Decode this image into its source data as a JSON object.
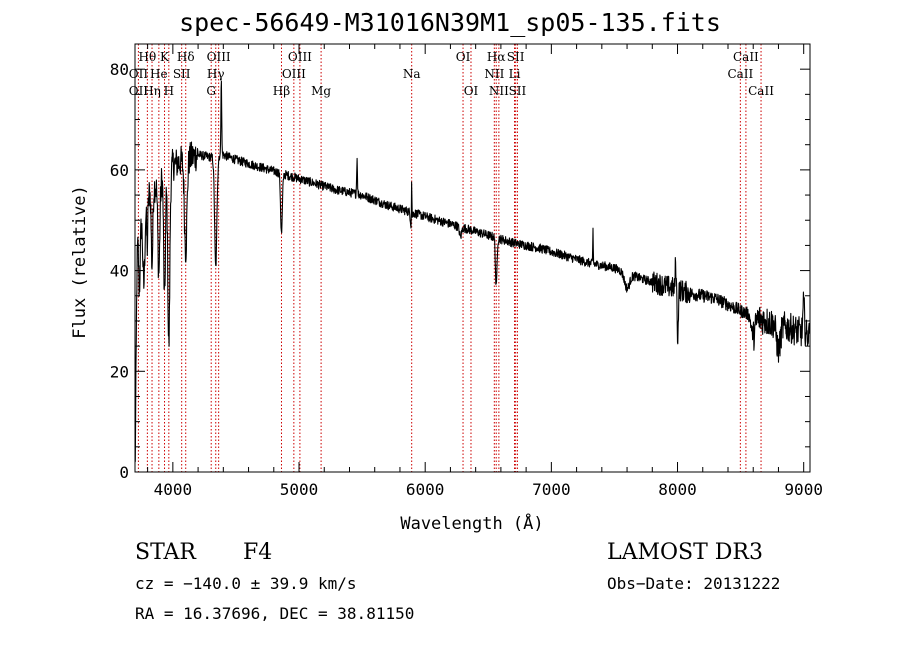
{
  "chart_data": {
    "type": "line",
    "title": "spec-56649-M31016N39M1_sp05-135.fits",
    "xlabel": "Wavelength (Å)",
    "ylabel": "Flux (relative)",
    "xlim": [
      3700,
      9050
    ],
    "ylim": [
      0,
      85
    ],
    "xticks": [
      4000,
      5000,
      6000,
      7000,
      8000,
      9000
    ],
    "yticks": [
      0,
      20,
      40,
      60,
      80
    ],
    "xtick_labels": [
      "4000",
      "5000",
      "6000",
      "7000",
      "8000",
      "9000"
    ],
    "ytick_labels": [
      "0",
      "20",
      "40",
      "60",
      "80"
    ],
    "continuum": [
      [
        3700,
        44
      ],
      [
        3750,
        50
      ],
      [
        3800,
        55
      ],
      [
        3900,
        58
      ],
      [
        4000,
        61
      ],
      [
        4100,
        62
      ],
      [
        4200,
        63
      ],
      [
        4300,
        62.5
      ],
      [
        4400,
        63
      ],
      [
        4500,
        62
      ],
      [
        4700,
        60.5
      ],
      [
        4900,
        59
      ],
      [
        5100,
        57.5
      ],
      [
        5300,
        56
      ],
      [
        5500,
        55
      ],
      [
        5700,
        53
      ],
      [
        5900,
        51.5
      ],
      [
        6100,
        50
      ],
      [
        6300,
        48.5
      ],
      [
        6500,
        47
      ],
      [
        6700,
        45.5
      ],
      [
        6900,
        44.5
      ],
      [
        7100,
        43
      ],
      [
        7300,
        41.5
      ],
      [
        7500,
        40.5
      ],
      [
        7700,
        38.5
      ],
      [
        7900,
        37
      ],
      [
        8100,
        35.5
      ],
      [
        8300,
        34.5
      ],
      [
        8500,
        32
      ],
      [
        8700,
        30
      ],
      [
        8900,
        28.5
      ],
      [
        9050,
        27
      ]
    ],
    "features": [
      [
        3700,
        -43,
        8
      ],
      [
        3735,
        -12,
        6
      ],
      [
        3770,
        -15,
        8
      ],
      [
        3797,
        -10,
        5
      ],
      [
        3835,
        -15,
        6
      ],
      [
        3889,
        -18,
        8
      ],
      [
        3934,
        -25,
        7
      ],
      [
        3968,
        -35,
        8
      ],
      [
        4102,
        -18,
        10
      ],
      [
        4340,
        -22,
        9
      ],
      [
        4384,
        16,
        3
      ],
      [
        4861,
        -12,
        7
      ],
      [
        5460,
        7,
        3
      ],
      [
        5890,
        -3,
        6
      ],
      [
        5893,
        9,
        2
      ],
      [
        6563,
        -10,
        6
      ],
      [
        6280,
        -2,
        8
      ],
      [
        7330,
        7,
        2
      ],
      [
        7600,
        -3,
        20
      ],
      [
        8002,
        -10,
        4
      ],
      [
        7985,
        6,
        3
      ],
      [
        8600,
        -4,
        15
      ],
      [
        8800,
        -5,
        15
      ],
      [
        9000,
        6,
        6
      ]
    ],
    "noise": [
      {
        "from": 3700,
        "to": 4200,
        "amp": 3.2
      },
      {
        "from": 4200,
        "to": 7800,
        "amp": 0.9
      },
      {
        "from": 7800,
        "to": 8100,
        "amp": 2.2
      },
      {
        "from": 8100,
        "to": 8600,
        "amp": 1.3
      },
      {
        "from": 8600,
        "to": 9050,
        "amp": 3.0
      }
    ],
    "line_marks": [
      {
        "label": "Hθ",
        "wave": 3798,
        "row": 1
      },
      {
        "label": "OII",
        "wave": 3727,
        "row": 2
      },
      {
        "label": "OII",
        "wave": 3727,
        "row": 3
      },
      {
        "label": "Hη",
        "wave": 3835,
        "row": 3
      },
      {
        "label": "He",
        "wave": 3889,
        "row": 2
      },
      {
        "label": "K",
        "wave": 3934,
        "row": 1
      },
      {
        "label": "H",
        "wave": 3968,
        "row": 3
      },
      {
        "label": "SII",
        "wave": 4070,
        "row": 2
      },
      {
        "label": "Hδ",
        "wave": 4102,
        "row": 1
      },
      {
        "label": "OIII",
        "wave": 4363,
        "row": 1
      },
      {
        "label": "Hγ",
        "wave": 4340,
        "row": 2
      },
      {
        "label": "G",
        "wave": 4304,
        "row": 3
      },
      {
        "label": "OIII",
        "wave": 5007,
        "row": 1
      },
      {
        "label": "OIII",
        "wave": 4959,
        "row": 2
      },
      {
        "label": "Hβ",
        "wave": 4861,
        "row": 3
      },
      {
        "label": "Mg",
        "wave": 5175,
        "row": 3
      },
      {
        "label": "Na",
        "wave": 5893,
        "row": 2
      },
      {
        "label": "OI",
        "wave": 6300,
        "row": 1
      },
      {
        "label": "OI",
        "wave": 6363,
        "row": 3
      },
      {
        "label": "Hα",
        "wave": 6563,
        "row": 1
      },
      {
        "label": "NII",
        "wave": 6548,
        "row": 2
      },
      {
        "label": "NII",
        "wave": 6584,
        "row": 3
      },
      {
        "label": "SII",
        "wave": 6717,
        "row": 1
      },
      {
        "label": "Li",
        "wave": 6708,
        "row": 2
      },
      {
        "label": "SII",
        "wave": 6731,
        "row": 3
      },
      {
        "label": "CaII",
        "wave": 8542,
        "row": 1
      },
      {
        "label": "CaII",
        "wave": 8498,
        "row": 2
      },
      {
        "label": "CaII",
        "wave": 8662,
        "row": 3
      }
    ],
    "line_color": "#000000",
    "mark_color": "#cc0000"
  },
  "info": {
    "object_class": "STAR",
    "subclass": "F4",
    "survey": "LAMOST DR3",
    "cz": "cz = −140.0 ± 39.9 km/s",
    "obs_date": "Obs−Date: 20131222",
    "coords": "RA =  16.37696, DEC =  38.81150"
  }
}
